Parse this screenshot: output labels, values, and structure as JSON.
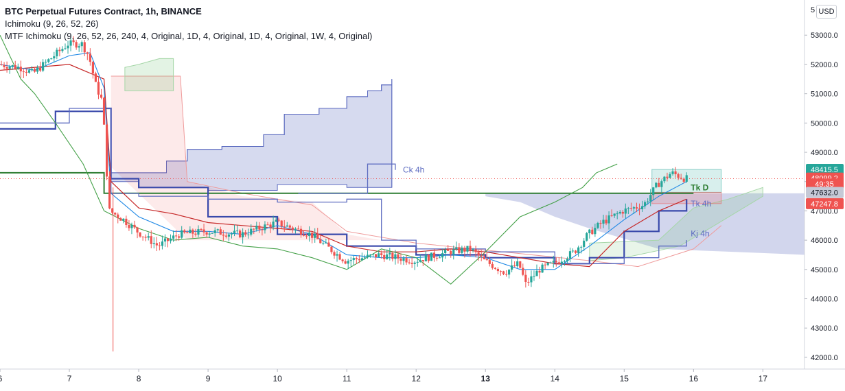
{
  "header": {
    "title": "BTC Perpetual Futures Contract, 1h, BINANCE",
    "indicator_1": "Ichimoku (9, 26, 52, 26)",
    "indicator_2": "MTF Ichimoku (9, 26, 52, 26, 240, 4, Original, 1D, 4, Original, 1D, 4, Original, 1W, 4, Original)"
  },
  "currency_button": "USD",
  "top_partial_label": "5",
  "price_tags": [
    {
      "label": "48415.5",
      "color": "#26a69a",
      "value": 48415.5
    },
    {
      "label": "48099.2",
      "color": "#ef5350",
      "value": 48120
    },
    {
      "label": "49:35",
      "color": "#ef5350",
      "value": 47920
    },
    {
      "label": "47632.0",
      "color": "#c5c9d6",
      "value": 47632.0
    },
    {
      "label": "47247.8",
      "color": "#ef5350",
      "value": 47247.8
    }
  ],
  "line_labels": [
    {
      "text": "Ck 4h",
      "color": "#5c6bc0"
    },
    {
      "text": "Tk D",
      "color": "#2e7d32"
    },
    {
      "text": "Tk 4h",
      "color": "#5c6bc0"
    },
    {
      "text": "Kj 4h",
      "color": "#5c6bc0"
    }
  ],
  "chart_data": {
    "type": "candlestick",
    "title": "BTC Perpetual Futures Contract, 1h, BINANCE",
    "x_tick_labels": [
      "6",
      "7",
      "8",
      "9",
      "10",
      "11",
      "12",
      "13",
      "14",
      "15",
      "16",
      "17"
    ],
    "x_tick_bold": [
      "13"
    ],
    "y_tick_labels": [
      "53000.0",
      "52000.0",
      "51000.0",
      "50000.0",
      "49000.0",
      "48000.0",
      "47000.0",
      "46000.0",
      "45000.0",
      "44000.0",
      "43000.0",
      "42000.0"
    ],
    "y_ticks": [
      53000,
      52000,
      51000,
      50000,
      49000,
      48000,
      47000,
      46000,
      45000,
      44000,
      43000,
      42000
    ],
    "y_range": [
      41600,
      54200
    ],
    "x_range_days": [
      6,
      17.6
    ],
    "grid": false,
    "last_price": 48099.2,
    "position_box": {
      "x_start": 15.4,
      "x_end": 16.4,
      "entry": 47632.0,
      "target": 48415.5,
      "stop": 47247.8
    },
    "price_series": [
      [
        6.0,
        52000
      ],
      [
        6.3,
        51900
      ],
      [
        6.5,
        51700
      ],
      [
        6.8,
        52300
      ],
      [
        7.0,
        52700
      ],
      [
        7.2,
        52700
      ],
      [
        7.3,
        52300
      ],
      [
        7.4,
        51300
      ],
      [
        7.5,
        50700
      ],
      [
        7.55,
        48600
      ],
      [
        7.6,
        47000
      ],
      [
        7.8,
        46700
      ],
      [
        8.0,
        46300
      ],
      [
        8.3,
        45800
      ],
      [
        8.6,
        46200
      ],
      [
        9.0,
        46300
      ],
      [
        9.5,
        46200
      ],
      [
        10.0,
        46600
      ],
      [
        10.5,
        46200
      ],
      [
        11.0,
        45300
      ],
      [
        11.5,
        45500
      ],
      [
        12.0,
        45300
      ],
      [
        12.5,
        45600
      ],
      [
        12.8,
        45700
      ],
      [
        13.0,
        45300
      ],
      [
        13.3,
        44900
      ],
      [
        13.5,
        45200
      ],
      [
        13.6,
        44500
      ],
      [
        13.8,
        45000
      ],
      [
        14.0,
        45200
      ],
      [
        14.3,
        45600
      ],
      [
        14.5,
        46200
      ],
      [
        14.7,
        46600
      ],
      [
        15.0,
        47000
      ],
      [
        15.3,
        47200
      ],
      [
        15.5,
        47900
      ],
      [
        15.7,
        48300
      ],
      [
        15.9,
        48099
      ]
    ],
    "ichimoku_1h": {
      "conversion": [
        [
          6,
          52000
        ],
        [
          6.5,
          51800
        ],
        [
          7,
          52300
        ],
        [
          7.3,
          52400
        ],
        [
          7.5,
          51200
        ],
        [
          7.6,
          47600
        ],
        [
          8,
          46800
        ],
        [
          8.5,
          46300
        ],
        [
          9,
          46300
        ],
        [
          9.5,
          46200
        ],
        [
          10,
          46500
        ],
        [
          10.5,
          46200
        ],
        [
          11,
          45500
        ],
        [
          11.5,
          45400
        ],
        [
          12,
          45400
        ],
        [
          12.5,
          45500
        ],
        [
          13,
          45400
        ],
        [
          13.5,
          45000
        ],
        [
          14,
          45000
        ],
        [
          14.5,
          45800
        ],
        [
          15,
          46700
        ],
        [
          15.5,
          47500
        ],
        [
          15.9,
          48000
        ]
      ],
      "base": [
        [
          6,
          51800
        ],
        [
          7,
          52000
        ],
        [
          7.5,
          51500
        ],
        [
          7.6,
          48000
        ],
        [
          8,
          47100
        ],
        [
          8.5,
          46900
        ],
        [
          9,
          46600
        ],
        [
          9.5,
          46500
        ],
        [
          10,
          46400
        ],
        [
          10.5,
          46300
        ],
        [
          11,
          45800
        ],
        [
          11.5,
          45600
        ],
        [
          12,
          45600
        ],
        [
          12.5,
          45700
        ],
        [
          13,
          45600
        ],
        [
          13.5,
          45400
        ],
        [
          14,
          45200
        ],
        [
          14.5,
          45100
        ],
        [
          15,
          46300
        ],
        [
          15.5,
          47000
        ],
        [
          15.9,
          47400
        ]
      ],
      "lagging": [
        [
          6,
          53000
        ],
        [
          6.3,
          51500
        ],
        [
          6.5,
          51000
        ],
        [
          6.8,
          50000
        ],
        [
          7.2,
          48600
        ],
        [
          7.5,
          47000
        ],
        [
          8,
          46400
        ],
        [
          8.5,
          46000
        ],
        [
          9,
          46100
        ],
        [
          9.5,
          45800
        ],
        [
          10,
          45700
        ],
        [
          10.5,
          45400
        ],
        [
          11,
          45000
        ],
        [
          11.5,
          45700
        ],
        [
          12,
          45400
        ],
        [
          12.5,
          44500
        ],
        [
          13,
          45600
        ],
        [
          13.5,
          46800
        ],
        [
          14,
          47300
        ],
        [
          14.4,
          47800
        ],
        [
          14.6,
          48300
        ],
        [
          14.9,
          48600
        ]
      ]
    },
    "mtf_4h": {
      "conversion": [
        [
          6,
          49800
        ],
        [
          6.8,
          50400
        ],
        [
          7.5,
          50500
        ],
        [
          7.6,
          48100
        ],
        [
          8,
          47800
        ],
        [
          9,
          46800
        ],
        [
          10,
          46200
        ],
        [
          11,
          45800
        ],
        [
          12,
          45500
        ],
        [
          13,
          45400
        ],
        [
          14,
          45200
        ],
        [
          14.5,
          45400
        ],
        [
          15,
          46300
        ],
        [
          15.5,
          47000
        ],
        [
          15.9,
          47400
        ]
      ],
      "base": [
        [
          6,
          50000
        ],
        [
          7,
          50500
        ],
        [
          7.5,
          50500
        ],
        [
          7.6,
          47600
        ],
        [
          8,
          47500
        ],
        [
          9,
          47400
        ],
        [
          10,
          47300
        ],
        [
          11,
          47400
        ],
        [
          11.5,
          46000
        ],
        [
          12,
          45700
        ],
        [
          13,
          45600
        ],
        [
          14,
          45200
        ],
        [
          15,
          45400
        ],
        [
          15.5,
          45800
        ],
        [
          15.9,
          46000
        ]
      ],
      "lagging": [
        [
          10.3,
          47600
        ],
        [
          11.3,
          48600
        ],
        [
          11.7,
          48400
        ]
      ]
    },
    "mtf_1d": {
      "conversion": [
        [
          6,
          48300
        ],
        [
          7,
          48300
        ],
        [
          7.5,
          47600
        ],
        [
          16,
          47600
        ]
      ]
    }
  }
}
